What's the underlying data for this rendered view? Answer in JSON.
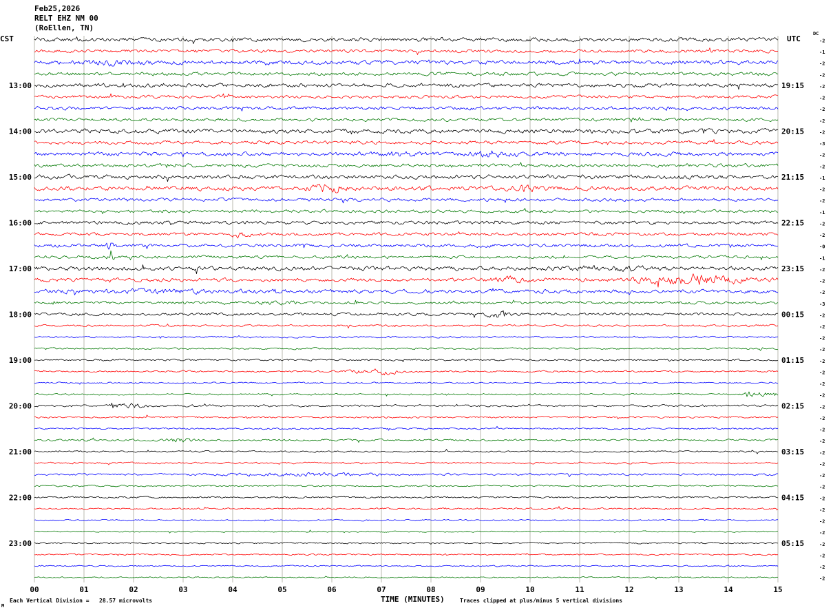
{
  "title": {
    "date": "Feb25,2026",
    "station": "RELT EHZ NM 00",
    "location": "(RoEllen, TN)"
  },
  "axes": {
    "left_header": "CST",
    "right_header": "UTC",
    "dc_header": "DC",
    "x_title": "TIME (MINUTES)",
    "footer_left": "Each Vertical Division =   28.57 microvolts",
    "footer_right": "Traces clipped at plus/minus 5 vertical divisions",
    "corner_mark": "M",
    "minute_labels": [
      "00",
      "01",
      "02",
      "03",
      "04",
      "05",
      "06",
      "07",
      "08",
      "09",
      "10",
      "11",
      "12",
      "13",
      "14",
      "15"
    ]
  },
  "chart_data": {
    "type": "line",
    "title": "RELT EHZ NM 00 (RoEllen, TN) helicorder, Feb25,2026",
    "xlabel": "TIME (MINUTES)",
    "x_range_minutes": [
      0,
      15
    ],
    "minutes_per_line": 15,
    "lines_per_hour": 4,
    "colors": {
      "black": "#000000",
      "red": "#ff0000",
      "blue": "#0000ff",
      "green": "#007700"
    },
    "grid_color": "#8a8a7a",
    "dc_values": [
      "-2",
      "-1",
      "-2",
      "-2",
      "-2",
      "-2",
      "-2",
      "-2",
      "-2",
      "-3",
      "-2",
      "-2",
      "-1",
      "-2",
      "-2",
      "-1",
      "-2",
      "-2",
      "-0",
      "-1",
      "-2",
      "-2",
      "-2",
      "-3",
      "-2",
      "-2",
      "-2",
      "-2",
      "-2",
      "-2",
      "-2",
      "-2",
      "-2",
      "-2",
      "-2",
      "-2",
      "-2",
      "-2",
      "-2",
      "-2",
      "-2",
      "-2",
      "-2",
      "-2",
      "-2",
      "-2",
      "-2",
      "-2"
    ],
    "rows": [
      {
        "color": "black",
        "amp": 2.4,
        "cst": "",
        "utc": "",
        "events": []
      },
      {
        "color": "red",
        "amp": 2.0,
        "cst": "",
        "utc": "",
        "events": []
      },
      {
        "color": "blue",
        "amp": 2.6,
        "cst": "",
        "utc": "",
        "events": [
          {
            "m": 1.5,
            "w": 0.5,
            "a": 0.6
          }
        ]
      },
      {
        "color": "green",
        "amp": 2.1,
        "cst": "",
        "utc": "",
        "events": []
      },
      {
        "color": "black",
        "amp": 2.4,
        "cst": "13:00",
        "utc": "19:15",
        "events": []
      },
      {
        "color": "red",
        "amp": 1.9,
        "cst": "",
        "utc": "",
        "events": []
      },
      {
        "color": "blue",
        "amp": 2.1,
        "cst": "",
        "utc": "",
        "events": []
      },
      {
        "color": "green",
        "amp": 1.9,
        "cst": "",
        "utc": "",
        "events": []
      },
      {
        "color": "black",
        "amp": 2.7,
        "cst": "14:00",
        "utc": "20:15",
        "events": []
      },
      {
        "color": "red",
        "amp": 2.1,
        "cst": "",
        "utc": "",
        "events": []
      },
      {
        "color": "blue",
        "amp": 2.5,
        "cst": "",
        "utc": "",
        "events": [
          {
            "m": 9.2,
            "w": 0.35,
            "a": 1.2
          },
          {
            "m": 7.4,
            "w": 0.3,
            "a": 0.8
          }
        ]
      },
      {
        "color": "green",
        "amp": 2.1,
        "cst": "",
        "utc": "",
        "events": []
      },
      {
        "color": "black",
        "amp": 2.5,
        "cst": "15:00",
        "utc": "21:15",
        "events": []
      },
      {
        "color": "red",
        "amp": 2.6,
        "cst": "",
        "utc": "",
        "events": [
          {
            "m": 5.9,
            "w": 0.35,
            "a": 1.3
          },
          {
            "m": 9.9,
            "w": 0.3,
            "a": 0.9
          }
        ]
      },
      {
        "color": "blue",
        "amp": 1.9,
        "cst": "",
        "utc": "",
        "events": []
      },
      {
        "color": "green",
        "amp": 1.8,
        "cst": "",
        "utc": "",
        "events": []
      },
      {
        "color": "black",
        "amp": 2.1,
        "cst": "16:00",
        "utc": "22:15",
        "events": []
      },
      {
        "color": "red",
        "amp": 1.9,
        "cst": "",
        "utc": "",
        "events": [
          {
            "m": 4.15,
            "w": 0.15,
            "a": 2.2
          }
        ]
      },
      {
        "color": "blue",
        "amp": 2.1,
        "cst": "",
        "utc": "",
        "events": [
          {
            "m": 1.55,
            "w": 0.08,
            "a": 3.0
          }
        ]
      },
      {
        "color": "green",
        "amp": 1.8,
        "cst": "",
        "utc": "",
        "events": [
          {
            "m": 1.55,
            "w": 0.05,
            "a": 8.0
          }
        ]
      },
      {
        "color": "black",
        "amp": 2.5,
        "cst": "17:00",
        "utc": "23:15",
        "events": [
          {
            "m": 11.5,
            "w": 1.0,
            "a": 0.6
          }
        ]
      },
      {
        "color": "red",
        "amp": 2.2,
        "cst": "",
        "utc": "",
        "events": [
          {
            "m": 13.3,
            "w": 1.1,
            "a": 2.2
          },
          {
            "m": 9.7,
            "w": 0.5,
            "a": 1.0
          }
        ]
      },
      {
        "color": "blue",
        "amp": 2.3,
        "cst": "",
        "utc": "",
        "events": [
          {
            "m": 2.5,
            "w": 1.5,
            "a": 0.5
          }
        ]
      },
      {
        "color": "green",
        "amp": 1.7,
        "cst": "",
        "utc": "",
        "events": [
          {
            "m": 4.8,
            "w": 0.6,
            "a": 0.8
          }
        ]
      },
      {
        "color": "black",
        "amp": 1.7,
        "cst": "18:00",
        "utc": "00:15",
        "events": [
          {
            "m": 9.35,
            "w": 0.2,
            "a": 2.0
          }
        ]
      },
      {
        "color": "red",
        "amp": 1.3,
        "cst": "",
        "utc": "",
        "events": []
      },
      {
        "color": "blue",
        "amp": 1.1,
        "cst": "",
        "utc": "",
        "events": []
      },
      {
        "color": "green",
        "amp": 1.1,
        "cst": "",
        "utc": "",
        "events": []
      },
      {
        "color": "black",
        "amp": 1.1,
        "cst": "19:00",
        "utc": "01:15",
        "events": []
      },
      {
        "color": "red",
        "amp": 1.1,
        "cst": "",
        "utc": "",
        "events": [
          {
            "m": 7.1,
            "w": 0.3,
            "a": 3.0
          },
          {
            "m": 6.5,
            "w": 0.2,
            "a": 1.2
          }
        ]
      },
      {
        "color": "blue",
        "amp": 1.0,
        "cst": "",
        "utc": "",
        "events": []
      },
      {
        "color": "green",
        "amp": 1.1,
        "cst": "",
        "utc": "",
        "events": [
          {
            "m": 14.6,
            "w": 0.3,
            "a": 1.5
          }
        ]
      },
      {
        "color": "black",
        "amp": 1.3,
        "cst": "20:00",
        "utc": "02:15",
        "events": [
          {
            "m": 1.85,
            "w": 0.3,
            "a": 2.0
          }
        ]
      },
      {
        "color": "red",
        "amp": 1.1,
        "cst": "",
        "utc": "",
        "events": []
      },
      {
        "color": "blue",
        "amp": 1.0,
        "cst": "",
        "utc": "",
        "events": []
      },
      {
        "color": "green",
        "amp": 1.2,
        "cst": "",
        "utc": "",
        "events": [
          {
            "m": 2.9,
            "w": 0.25,
            "a": 2.0
          }
        ]
      },
      {
        "color": "black",
        "amp": 1.0,
        "cst": "21:00",
        "utc": "03:15",
        "events": []
      },
      {
        "color": "red",
        "amp": 1.1,
        "cst": "",
        "utc": "",
        "events": []
      },
      {
        "color": "blue",
        "amp": 1.3,
        "cst": "",
        "utc": "",
        "events": [
          {
            "m": 5.6,
            "w": 1.5,
            "a": 1.0
          }
        ]
      },
      {
        "color": "green",
        "amp": 1.0,
        "cst": "",
        "utc": "",
        "events": []
      },
      {
        "color": "black",
        "amp": 1.1,
        "cst": "22:00",
        "utc": "04:15",
        "events": []
      },
      {
        "color": "red",
        "amp": 1.0,
        "cst": "",
        "utc": "",
        "events": []
      },
      {
        "color": "blue",
        "amp": 0.9,
        "cst": "",
        "utc": "",
        "events": []
      },
      {
        "color": "green",
        "amp": 0.9,
        "cst": "",
        "utc": "",
        "events": []
      },
      {
        "color": "black",
        "amp": 0.9,
        "cst": "23:00",
        "utc": "05:15",
        "events": []
      },
      {
        "color": "red",
        "amp": 0.9,
        "cst": "",
        "utc": "",
        "events": []
      },
      {
        "color": "blue",
        "amp": 0.8,
        "cst": "",
        "utc": "",
        "events": []
      },
      {
        "color": "green",
        "amp": 0.8,
        "cst": "",
        "utc": "",
        "events": []
      }
    ]
  }
}
